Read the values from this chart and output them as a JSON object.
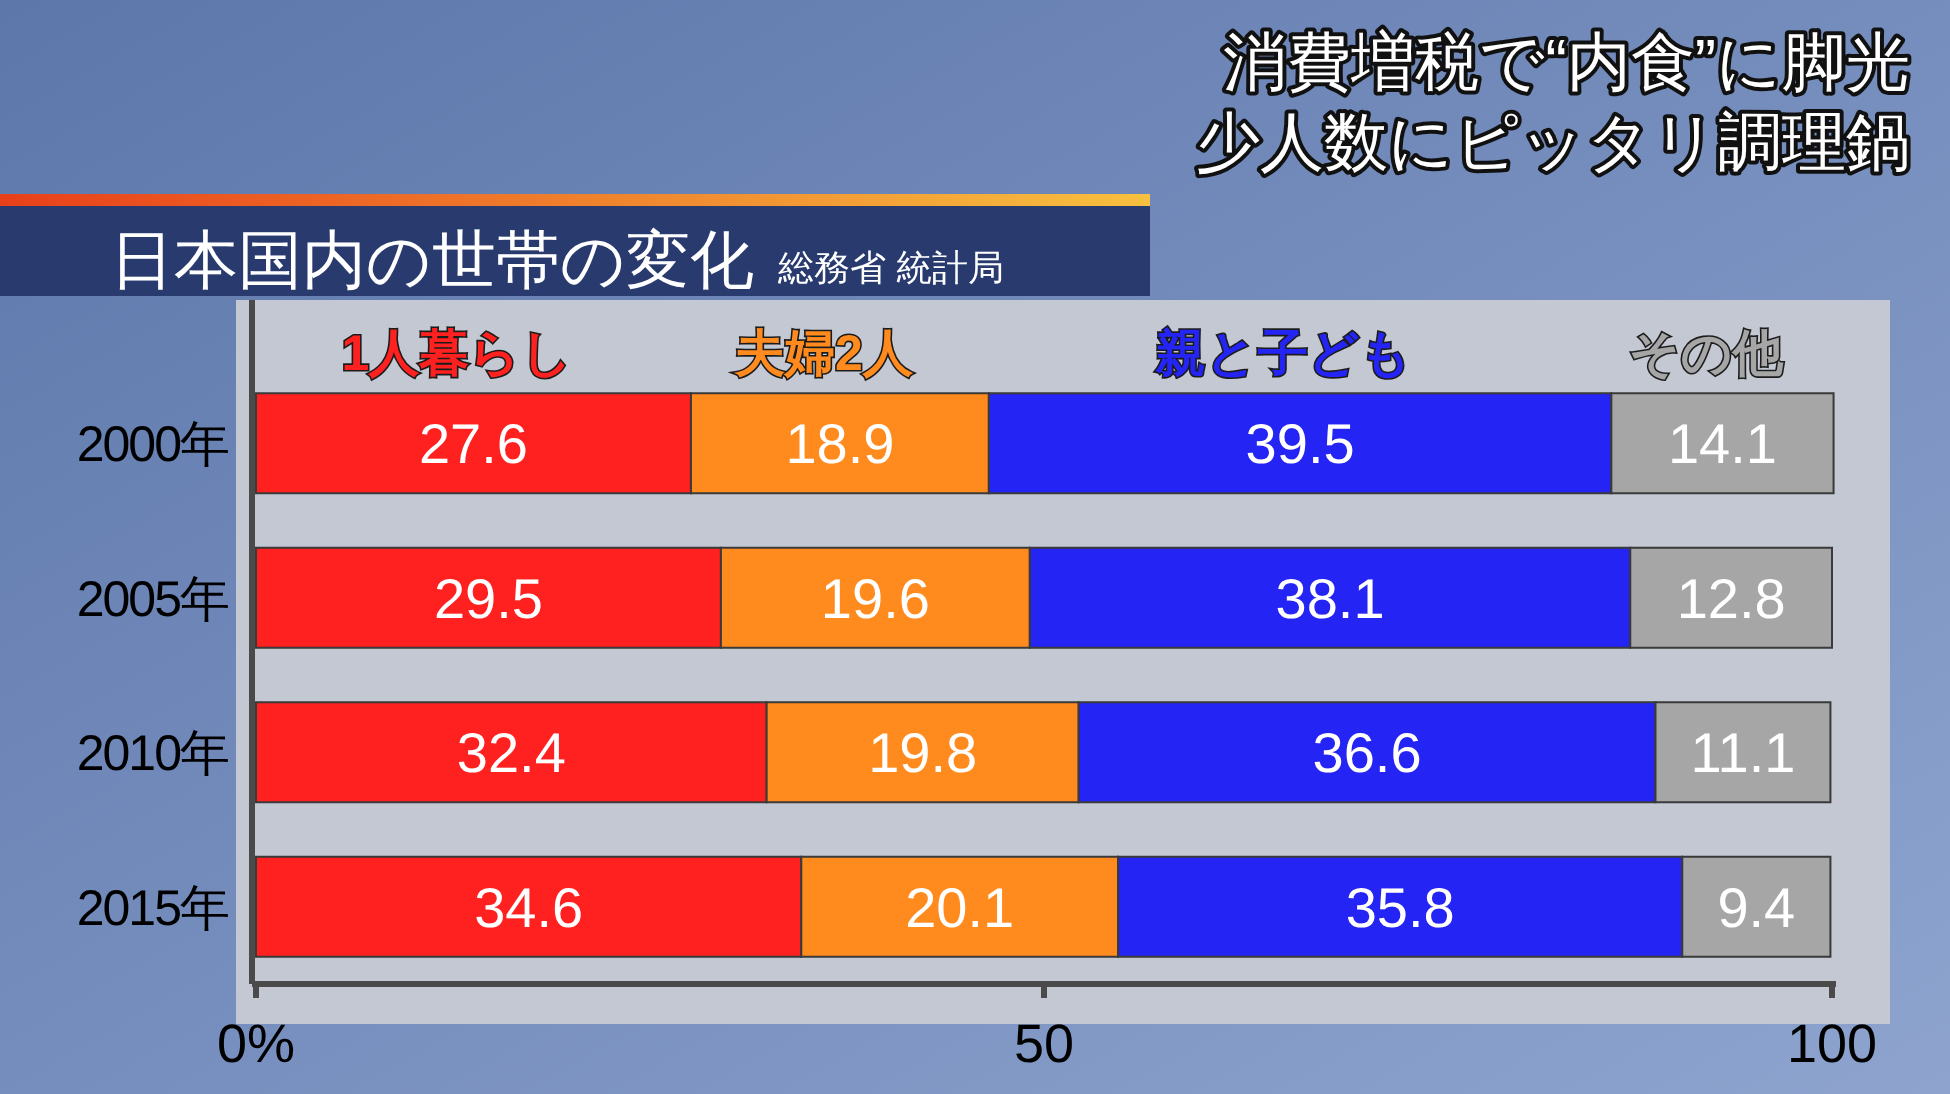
{
  "chart_data": {
    "type": "bar",
    "orientation": "horizontal",
    "stacked": true,
    "title": "日本国内の世帯の変化",
    "annotations": [
      "総務省 統計局",
      "消費増税で“内食”に脚光",
      "少人数にピッタリ調理鍋"
    ],
    "categories": [
      "2000年",
      "2005年",
      "2010年",
      "2015年"
    ],
    "series": [
      {
        "name": "1人暮らし",
        "color": "#ff2020",
        "values": [
          27.6,
          29.5,
          32.4,
          34.6
        ]
      },
      {
        "name": "夫婦2人",
        "color": "#ff8a1e",
        "values": [
          18.9,
          19.6,
          19.8,
          20.1
        ]
      },
      {
        "name": "親と子ども",
        "color": "#2424f5",
        "values": [
          39.5,
          38.1,
          36.6,
          35.8
        ]
      },
      {
        "name": "その他",
        "color": "#a6a6a6",
        "values": [
          14.1,
          12.8,
          11.1,
          9.4
        ]
      }
    ],
    "xlim": [
      0,
      100
    ],
    "xticks": [
      {
        "value": 0,
        "label": "0%"
      },
      50,
      100
    ],
    "data_labels": true,
    "legend": "top"
  }
}
